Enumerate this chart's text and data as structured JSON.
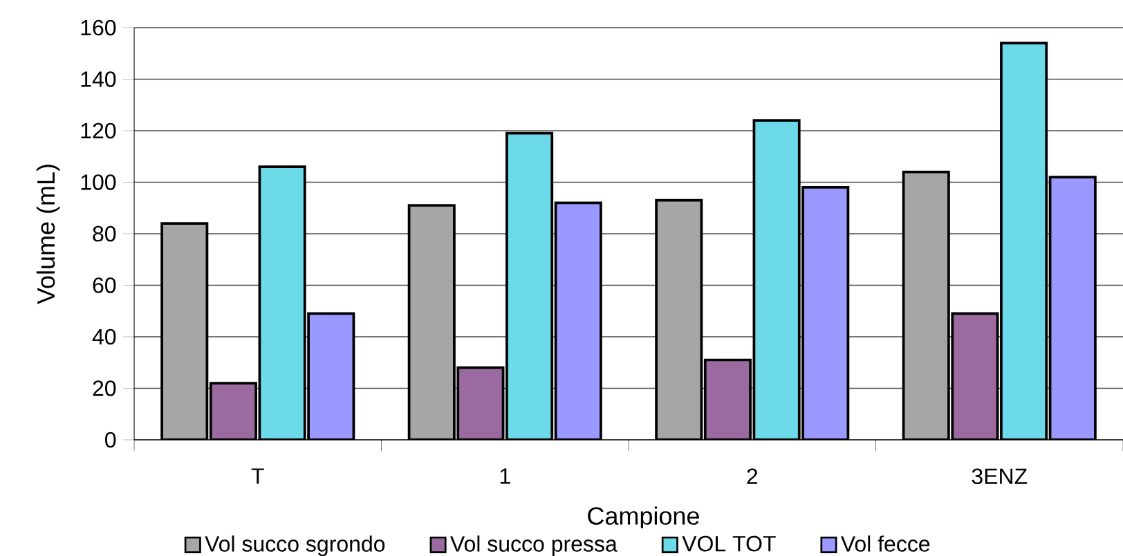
{
  "chart_data": {
    "type": "bar",
    "xlabel": "Campione",
    "ylabel": "Volume (mL)",
    "categories": [
      "T",
      "1",
      "2",
      "3ENZ"
    ],
    "series": [
      {
        "name": "Vol succo sgrondo",
        "color": "#a6a6a6",
        "values": [
          84,
          91,
          93,
          104
        ]
      },
      {
        "name": "Vol succo pressa",
        "color": "#9a6aa0",
        "values": [
          22,
          28,
          31,
          49
        ]
      },
      {
        "name": "VOL TOT",
        "color": "#6cdae8",
        "values": [
          106,
          119,
          124,
          154
        ]
      },
      {
        "name": "Vol fecce",
        "color": "#9999ff",
        "values": [
          49,
          92,
          98,
          102
        ]
      }
    ],
    "ylim": [
      0,
      160
    ],
    "yticks": [
      0,
      20,
      40,
      60,
      80,
      100,
      120,
      140,
      160
    ],
    "grid": "y",
    "legend": "bottom"
  }
}
